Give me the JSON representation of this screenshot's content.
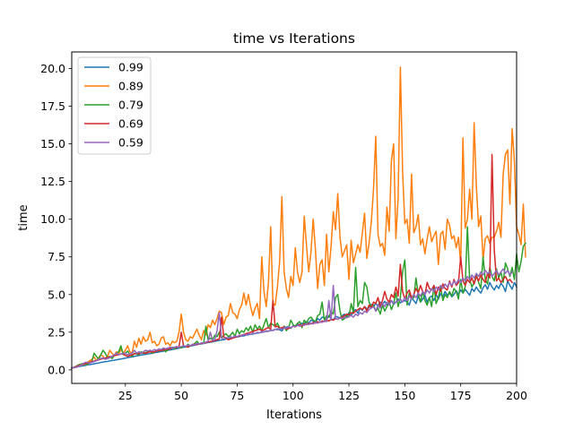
{
  "chart_data": {
    "type": "line",
    "title": "time vs Iterations",
    "xlabel": "Iterations",
    "ylabel": "time",
    "xlim": [
      1,
      200
    ],
    "ylim": [
      -0.9,
      21.1
    ],
    "xticks": [
      25,
      50,
      75,
      100,
      125,
      150,
      175,
      200
    ],
    "yticks": [
      0.0,
      2.5,
      5.0,
      7.5,
      10.0,
      12.5,
      15.0,
      17.5,
      20.0
    ],
    "grid": false,
    "legend_position": "top-left",
    "x_start": 1,
    "x_step": 1,
    "series": [
      {
        "name": "0.99",
        "color": "#1f77b4",
        "values": [
          0.12,
          0.16,
          0.18,
          0.22,
          0.24,
          0.27,
          0.29,
          0.33,
          0.35,
          0.37,
          0.4,
          0.43,
          0.45,
          0.49,
          0.52,
          0.54,
          0.56,
          0.59,
          0.62,
          0.64,
          0.67,
          0.7,
          0.72,
          0.75,
          0.78,
          0.81,
          0.84,
          0.86,
          0.89,
          0.93,
          0.95,
          0.98,
          1.01,
          1.03,
          1.05,
          1.08,
          1.1,
          1.14,
          1.16,
          1.19,
          1.22,
          1.24,
          1.28,
          1.3,
          1.32,
          1.35,
          1.38,
          1.41,
          1.44,
          1.48,
          1.5,
          1.52,
          1.55,
          1.58,
          1.61,
          1.63,
          1.67,
          1.7,
          1.72,
          1.75,
          1.78,
          1.81,
          1.84,
          1.86,
          1.9,
          1.92,
          1.95,
          1.98,
          2.0,
          2.05,
          2.07,
          2.09,
          2.12,
          2.16,
          2.18,
          2.21,
          2.24,
          2.26,
          2.3,
          2.33,
          2.36,
          2.38,
          2.42,
          2.44,
          2.47,
          2.49,
          2.53,
          2.55,
          2.58,
          2.61,
          2.64,
          2.68,
          2.72,
          2.66,
          2.58,
          2.8,
          2.83,
          2.88,
          2.76,
          2.93,
          2.9,
          3.05,
          2.98,
          3.1,
          3.05,
          3.2,
          3.1,
          3.3,
          3.25,
          3.15,
          3.4,
          3.3,
          3.5,
          3.45,
          3.35,
          3.6,
          3.4,
          3.3,
          3.55,
          3.5,
          3.45,
          3.6,
          3.7,
          3.5,
          3.8,
          3.6,
          3.9,
          4.0,
          3.75,
          4.1,
          3.95,
          4.2,
          4.05,
          4.15,
          4.35,
          4.2,
          4.4,
          4.25,
          4.5,
          4.35,
          4.55,
          4.3,
          4.45,
          4.6,
          4.35,
          4.5,
          4.7,
          4.45,
          4.55,
          4.6,
          4.5,
          4.3,
          4.8,
          4.6,
          4.4,
          4.9,
          4.5,
          4.7,
          4.95,
          4.5,
          4.8,
          4.9,
          4.6,
          5.0,
          4.7,
          5.05,
          4.85,
          5.2,
          4.95,
          5.1,
          4.85,
          5.0,
          5.25,
          5.0,
          5.3,
          5.1,
          5.35,
          5.15,
          4.95,
          5.4,
          5.2,
          5.5,
          5.25,
          5.1,
          5.45,
          5.65,
          5.35,
          5.8,
          5.5,
          5.3,
          5.6,
          5.4,
          5.75,
          5.55,
          5.2,
          5.9,
          5.6,
          5.35,
          5.8,
          5.5
        ]
      },
      {
        "name": "0.89",
        "color": "#ff7f0e",
        "values": [
          0.12,
          0.14,
          0.2,
          0.23,
          0.3,
          0.35,
          0.4,
          0.5,
          0.6,
          0.7,
          0.85,
          0.6,
          0.8,
          1.0,
          0.9,
          0.7,
          0.9,
          1.3,
          1.1,
          0.95,
          1.2,
          1.0,
          1.4,
          1.1,
          1.3,
          1.6,
          1.2,
          1.1,
          1.9,
          1.5,
          2.1,
          1.7,
          2.2,
          1.9,
          2.0,
          2.5,
          1.8,
          1.9,
          1.6,
          1.7,
          2.1,
          2.2,
          1.7,
          1.8,
          1.6,
          1.9,
          1.8,
          1.9,
          2.5,
          3.7,
          2.5,
          2.0,
          1.9,
          2.2,
          2.1,
          2.4,
          2.7,
          2.3,
          2.0,
          2.6,
          2.3,
          3.0,
          2.8,
          3.3,
          3.0,
          3.4,
          3.9,
          3.8,
          3.0,
          3.5,
          3.6,
          4.4,
          3.8,
          3.7,
          3.4,
          4.0,
          4.3,
          5.1,
          4.3,
          5.0,
          4.2,
          3.6,
          4.1,
          4.4,
          3.4,
          7.5,
          5.2,
          4.2,
          5.8,
          9.5,
          4.4,
          4.3,
          5.5,
          7.2,
          11.5,
          6.5,
          5.4,
          4.8,
          6.2,
          5.6,
          8.1,
          6.5,
          5.8,
          6.5,
          10.2,
          8.3,
          6.5,
          7.8,
          10.0,
          8.0,
          5.4,
          7.0,
          7.3,
          5.6,
          9.0,
          6.5,
          8.2,
          10.5,
          9.3,
          11.7,
          8.8,
          7.5,
          7.9,
          8.3,
          6.0,
          8.6,
          7.1,
          7.7,
          8.3,
          7.8,
          9.1,
          10.4,
          7.4,
          8.4,
          9.8,
          12.0,
          15.5,
          9.0,
          8.2,
          8.4,
          7.6,
          10.8,
          9.2,
          13.9,
          15.0,
          8.7,
          11.4,
          20.1,
          13.2,
          9.7,
          10.0,
          8.4,
          13.0,
          9.1,
          9.5,
          10.3,
          8.3,
          8.7,
          7.7,
          8.7,
          9.5,
          8.5,
          8.9,
          9.2,
          7.0,
          9.0,
          9.2,
          8.0,
          10.0,
          9.6,
          8.7,
          8.9,
          8.1,
          8.8,
          7.0,
          15.4,
          9.4,
          10.0,
          12.0,
          10.0,
          16.4,
          12.2,
          9.5,
          10.2,
          7.3,
          8.7,
          8.9,
          8.4,
          8.8,
          8.8,
          9.2,
          9.8,
          8.8,
          13.0,
          14.3,
          14.6,
          11.0,
          16.0,
          13.9,
          9.5,
          9.0,
          8.3,
          11.0,
          7.5
        ]
      },
      {
        "name": "0.79",
        "color": "#2ca02c",
        "values": [
          0.12,
          0.16,
          0.25,
          0.33,
          0.38,
          0.42,
          0.4,
          0.35,
          0.5,
          0.55,
          1.1,
          0.9,
          0.7,
          1.0,
          1.3,
          1.1,
          0.8,
          0.9,
          0.75,
          0.95,
          1.1,
          1.2,
          1.6,
          1.0,
          1.1,
          1.25,
          1.0,
          0.9,
          1.1,
          1.05,
          1.0,
          1.2,
          1.1,
          1.15,
          1.2,
          1.3,
          1.1,
          1.2,
          1.3,
          1.25,
          1.3,
          1.4,
          1.2,
          1.35,
          1.4,
          1.5,
          1.4,
          1.55,
          1.5,
          1.45,
          1.6,
          1.55,
          1.7,
          1.6,
          1.65,
          1.75,
          1.9,
          1.7,
          1.8,
          1.75,
          2.9,
          2.0,
          2.1,
          2.0,
          2.3,
          2.2,
          2.5,
          2.1,
          2.3,
          2.4,
          2.2,
          2.3,
          2.5,
          2.2,
          2.7,
          2.4,
          2.6,
          2.5,
          2.8,
          2.6,
          2.9,
          2.5,
          3.0,
          2.7,
          2.9,
          2.6,
          3.0,
          3.4,
          2.8,
          3.1,
          3.0,
          2.9,
          3.1,
          2.8,
          2.7,
          2.9,
          2.6,
          2.8,
          3.3,
          3.0,
          2.9,
          3.1,
          3.2,
          2.8,
          3.3,
          3.1,
          3.4,
          3.5,
          3.3,
          3.2,
          3.6,
          3.7,
          4.5,
          3.3,
          3.6,
          3.5,
          3.9,
          3.7,
          4.8,
          5.0,
          3.9,
          3.3,
          3.4,
          3.6,
          3.5,
          4.4,
          3.8,
          6.8,
          4.2,
          4.6,
          4.4,
          5.8,
          5.5,
          4.5,
          4.2,
          4.3,
          3.9,
          4.1,
          3.7,
          4.3,
          3.9,
          4.2,
          4.5,
          4.0,
          4.4,
          5.1,
          4.2,
          4.8,
          6.5,
          7.3,
          4.3,
          5.1,
          4.7,
          4.8,
          6.1,
          5.0,
          4.5,
          5.2,
          4.6,
          4.3,
          4.8,
          4.2,
          5.6,
          4.4,
          4.8,
          5.5,
          4.6,
          5.0,
          4.8,
          5.2,
          4.9,
          5.4,
          5.2,
          4.7,
          6.0,
          5.1,
          5.5,
          9.5,
          6.0,
          5.5,
          5.8,
          6.3,
          5.8,
          5.4,
          7.5,
          6.0,
          5.7,
          6.8,
          6.2,
          5.9,
          6.7,
          6.1,
          6.5,
          5.8,
          7.1,
          6.7,
          6.2,
          6.8,
          6.0,
          7.7,
          6.5,
          7.2,
          8.2,
          8.4
        ]
      },
      {
        "name": "0.69",
        "color": "#d62728",
        "values": [
          0.12,
          0.17,
          0.22,
          0.28,
          0.33,
          0.37,
          0.41,
          0.45,
          0.5,
          0.55,
          0.58,
          0.62,
          0.66,
          0.71,
          0.74,
          0.78,
          0.82,
          0.85,
          0.9,
          0.94,
          0.97,
          1.01,
          1.05,
          1.08,
          0.95,
          0.9,
          0.95,
          1.0,
          1.05,
          1.1,
          1.08,
          1.1,
          1.15,
          1.1,
          1.15,
          1.2,
          1.18,
          1.2,
          1.25,
          1.28,
          1.3,
          1.32,
          1.35,
          1.38,
          1.4,
          1.45,
          1.5,
          1.48,
          1.55,
          2.5,
          1.6,
          1.55,
          1.5,
          1.6,
          1.65,
          1.7,
          1.68,
          1.72,
          1.75,
          1.78,
          1.8,
          1.85,
          1.88,
          1.9,
          1.95,
          2.0,
          2.05,
          3.5,
          2.2,
          2.1,
          2.0,
          2.05,
          2.1,
          2.15,
          2.2,
          2.25,
          2.3,
          2.35,
          2.4,
          2.45,
          2.5,
          2.55,
          2.6,
          2.65,
          2.7,
          2.6,
          2.65,
          2.75,
          2.8,
          2.7,
          4.6,
          2.85,
          2.9,
          2.75,
          2.8,
          2.85,
          2.7,
          2.75,
          2.8,
          2.9,
          2.85,
          2.95,
          3.0,
          2.9,
          3.05,
          3.0,
          3.1,
          3.05,
          3.15,
          3.1,
          3.2,
          3.15,
          3.25,
          3.2,
          3.3,
          3.25,
          3.35,
          3.3,
          3.4,
          3.35,
          3.45,
          3.5,
          3.6,
          3.7,
          3.65,
          3.8,
          3.75,
          3.9,
          4.0,
          4.1,
          4.0,
          4.2,
          3.9,
          4.3,
          4.1,
          4.5,
          4.4,
          4.8,
          4.2,
          4.6,
          5.2,
          4.7,
          4.5,
          5.0,
          4.8,
          5.5,
          4.9,
          7.0,
          5.2,
          4.7,
          5.1,
          5.3,
          4.8,
          5.0,
          5.4,
          5.1,
          5.6,
          5.2,
          5.0,
          5.8,
          5.4,
          5.3,
          5.6,
          5.0,
          5.5,
          5.2,
          5.7,
          5.4,
          5.3,
          5.9,
          5.5,
          6.0,
          5.6,
          5.8,
          7.5,
          5.9,
          5.6,
          6.0,
          5.8,
          6.1,
          5.7,
          6.2,
          5.9,
          6.3,
          6.0,
          5.8,
          6.4,
          6.1,
          14.3,
          8.0,
          5.9,
          6.1,
          5.8,
          6.0,
          6.2,
          5.9,
          6.0,
          5.8
        ]
      },
      {
        "name": "0.59",
        "color": "#9467bd",
        "values": [
          0.12,
          0.15,
          0.18,
          0.22,
          0.3,
          0.4,
          0.5,
          0.5,
          0.45,
          0.5,
          0.55,
          0.6,
          0.7,
          0.75,
          0.8,
          0.7,
          0.75,
          0.8,
          0.9,
          1.0,
          1.1,
          1.0,
          1.05,
          1.1,
          1.1,
          1.0,
          1.05,
          1.1,
          1.3,
          1.1,
          1.2,
          1.1,
          1.2,
          1.3,
          1.25,
          1.3,
          1.25,
          1.35,
          1.3,
          1.4,
          1.35,
          1.45,
          1.4,
          1.45,
          1.5,
          1.45,
          1.5,
          1.55,
          1.5,
          1.55,
          1.6,
          1.55,
          1.65,
          1.6,
          1.7,
          1.65,
          1.75,
          1.7,
          1.8,
          1.75,
          1.85,
          1.9,
          2.5,
          1.95,
          2.0,
          2.6,
          3.8,
          2.1,
          2.05,
          2.15,
          2.1,
          2.2,
          2.15,
          2.25,
          2.2,
          2.3,
          2.25,
          2.35,
          2.3,
          2.4,
          2.35,
          2.45,
          2.4,
          2.5,
          2.45,
          2.55,
          2.5,
          2.6,
          2.55,
          2.65,
          2.6,
          2.7,
          2.65,
          2.75,
          2.7,
          2.8,
          2.75,
          2.85,
          2.8,
          2.9,
          2.85,
          2.95,
          2.9,
          3.0,
          2.95,
          3.05,
          3.0,
          3.1,
          3.05,
          3.15,
          3.1,
          3.2,
          3.15,
          3.25,
          3.2,
          4.6,
          3.3,
          5.6,
          3.4,
          3.35,
          3.45,
          3.4,
          3.5,
          3.45,
          3.55,
          3.6,
          3.5,
          3.7,
          3.6,
          3.8,
          3.7,
          3.9,
          3.8,
          4.0,
          4.1,
          4.2,
          3.9,
          4.3,
          4.1,
          4.4,
          4.2,
          4.5,
          4.3,
          4.6,
          4.4,
          4.5,
          4.6,
          4.7,
          4.5,
          4.8,
          4.6,
          4.9,
          4.7,
          5.0,
          4.8,
          5.1,
          4.9,
          5.2,
          5.0,
          5.3,
          5.1,
          5.4,
          5.2,
          5.5,
          5.3,
          5.6,
          5.4,
          5.7,
          5.5,
          5.8,
          5.6,
          5.9,
          5.7,
          6.0,
          5.8,
          6.1,
          5.9,
          6.2,
          6.0,
          6.3,
          6.1,
          6.4,
          6.2,
          6.5,
          6.3,
          6.6,
          6.4,
          6.5,
          6.2,
          6.4,
          6.6,
          6.3,
          6.5,
          6.7,
          6.4,
          6.6,
          6.3,
          6.5
        ]
      }
    ]
  }
}
